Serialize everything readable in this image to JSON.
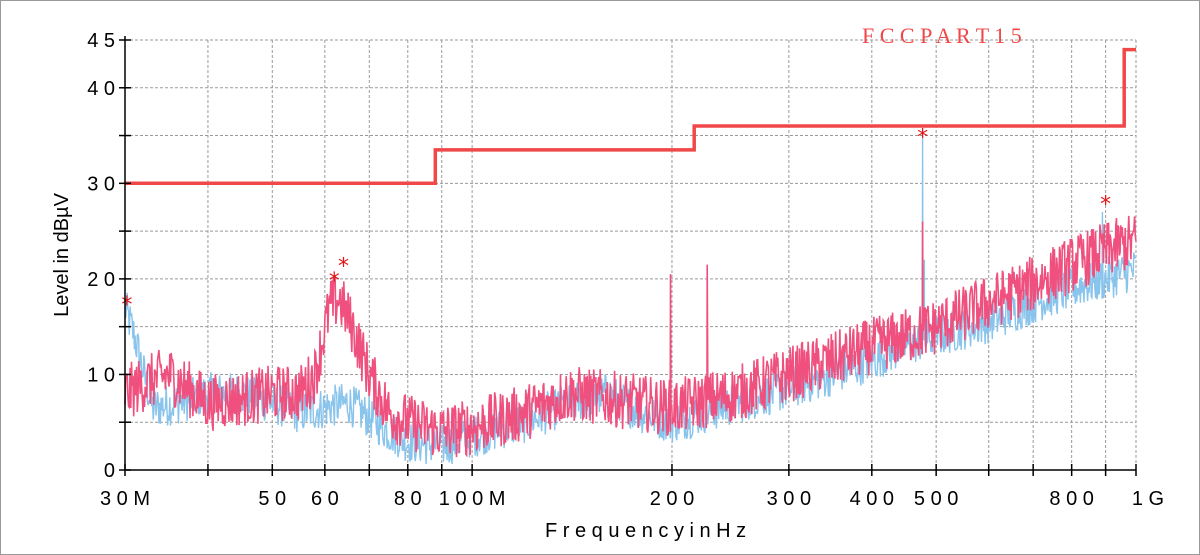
{
  "chart_data": {
    "type": "line",
    "title": "",
    "xlabel": "F r e q u e n c y   i n   H z",
    "ylabel": "Level in dBµV",
    "x_scale": "log",
    "xlim_hz": [
      30000000,
      1000000000
    ],
    "ylim": [
      0,
      45
    ],
    "grid": true,
    "x_ticks": [
      {
        "value": 30000000,
        "label": "3 0  M"
      },
      {
        "value": 50000000,
        "label": "5 0"
      },
      {
        "value": 60000000,
        "label": "6 0"
      },
      {
        "value": 80000000,
        "label": "8 0"
      },
      {
        "value": 100000000,
        "label": "1 0 0  M"
      },
      {
        "value": 200000000,
        "label": "2 0 0"
      },
      {
        "value": 300000000,
        "label": "3 0 0"
      },
      {
        "value": 400000000,
        "label": "4 0 0"
      },
      {
        "value": 500000000,
        "label": "5 0 0"
      },
      {
        "value": 800000000,
        "label": "8 0 0"
      },
      {
        "value": 1000000000,
        "label": "1  G"
      }
    ],
    "y_ticks": [
      {
        "value": 0,
        "label": "0"
      },
      {
        "value": 10,
        "label": "1 0"
      },
      {
        "value": 20,
        "label": "2 0"
      },
      {
        "value": 30,
        "label": "3 0"
      },
      {
        "value": 40,
        "label": "4 0"
      },
      {
        "value": 45,
        "label": "4 5"
      }
    ],
    "y_minor_ticks": [
      5,
      15,
      25,
      35
    ],
    "limit_line": {
      "name": "F C C   P A R T   1 5",
      "color": "#f04848",
      "points": [
        [
          30000000,
          30
        ],
        [
          88000000,
          30
        ],
        [
          88000000,
          33.5
        ],
        [
          216000000,
          33.5
        ],
        [
          216000000,
          36
        ],
        [
          960000000,
          36
        ],
        [
          960000000,
          44
        ],
        [
          1000000000,
          44
        ]
      ]
    },
    "series": [
      {
        "color": "#88c4ec",
        "anchors": [
          [
            30000000,
            17
          ],
          [
            31000000,
            14
          ],
          [
            33000000,
            6.5
          ],
          [
            36000000,
            7
          ],
          [
            40000000,
            8
          ],
          [
            45000000,
            8
          ],
          [
            50000000,
            7
          ],
          [
            55000000,
            6
          ],
          [
            60000000,
            6.5
          ],
          [
            65000000,
            7
          ],
          [
            70000000,
            5.5
          ],
          [
            75000000,
            4
          ],
          [
            80000000,
            3
          ],
          [
            90000000,
            2.5
          ],
          [
            100000000,
            3.5
          ],
          [
            120000000,
            5
          ],
          [
            140000000,
            7
          ],
          [
            160000000,
            8
          ],
          [
            180000000,
            6
          ],
          [
            200000000,
            5
          ],
          [
            250000000,
            7
          ],
          [
            300000000,
            8.5
          ],
          [
            350000000,
            10
          ],
          [
            400000000,
            11.5
          ],
          [
            450000000,
            13
          ],
          [
            500000000,
            14
          ],
          [
            600000000,
            15.5
          ],
          [
            700000000,
            17.5
          ],
          [
            800000000,
            19
          ],
          [
            900000000,
            20
          ],
          [
            1000000000,
            21
          ]
        ],
        "spikes": [
          [
            477000000,
            35
          ],
          [
            480000000,
            22
          ],
          [
            890000000,
            27
          ]
        ]
      },
      {
        "color": "#f0507e",
        "anchors": [
          [
            30000000,
            8
          ],
          [
            32000000,
            9
          ],
          [
            35000000,
            10
          ],
          [
            40000000,
            7
          ],
          [
            45000000,
            7.5
          ],
          [
            50000000,
            8
          ],
          [
            55000000,
            8
          ],
          [
            58000000,
            10
          ],
          [
            61000000,
            17
          ],
          [
            63000000,
            18
          ],
          [
            66000000,
            15
          ],
          [
            70000000,
            10
          ],
          [
            75000000,
            6
          ],
          [
            80000000,
            5
          ],
          [
            90000000,
            4
          ],
          [
            100000000,
            4.5
          ],
          [
            120000000,
            6
          ],
          [
            140000000,
            8
          ],
          [
            160000000,
            7.5
          ],
          [
            180000000,
            7
          ],
          [
            200000000,
            6.5
          ],
          [
            250000000,
            8
          ],
          [
            300000000,
            10
          ],
          [
            350000000,
            11.5
          ],
          [
            400000000,
            13
          ],
          [
            450000000,
            14
          ],
          [
            500000000,
            15
          ],
          [
            600000000,
            17.5
          ],
          [
            700000000,
            19.5
          ],
          [
            800000000,
            21.5
          ],
          [
            900000000,
            23
          ],
          [
            1000000000,
            24
          ]
        ],
        "spikes": [
          [
            199000000,
            20.5
          ],
          [
            226000000,
            21.5
          ],
          [
            477000000,
            26
          ]
        ]
      }
    ],
    "peak_markers": [
      {
        "x": 30200000,
        "y": 17.5
      },
      {
        "x": 62000000,
        "y": 20
      },
      {
        "x": 64000000,
        "y": 21.5
      },
      {
        "x": 477000000,
        "y": 35
      },
      {
        "x": 900000000,
        "y": 28
      }
    ],
    "marker_color": "#e01818"
  }
}
